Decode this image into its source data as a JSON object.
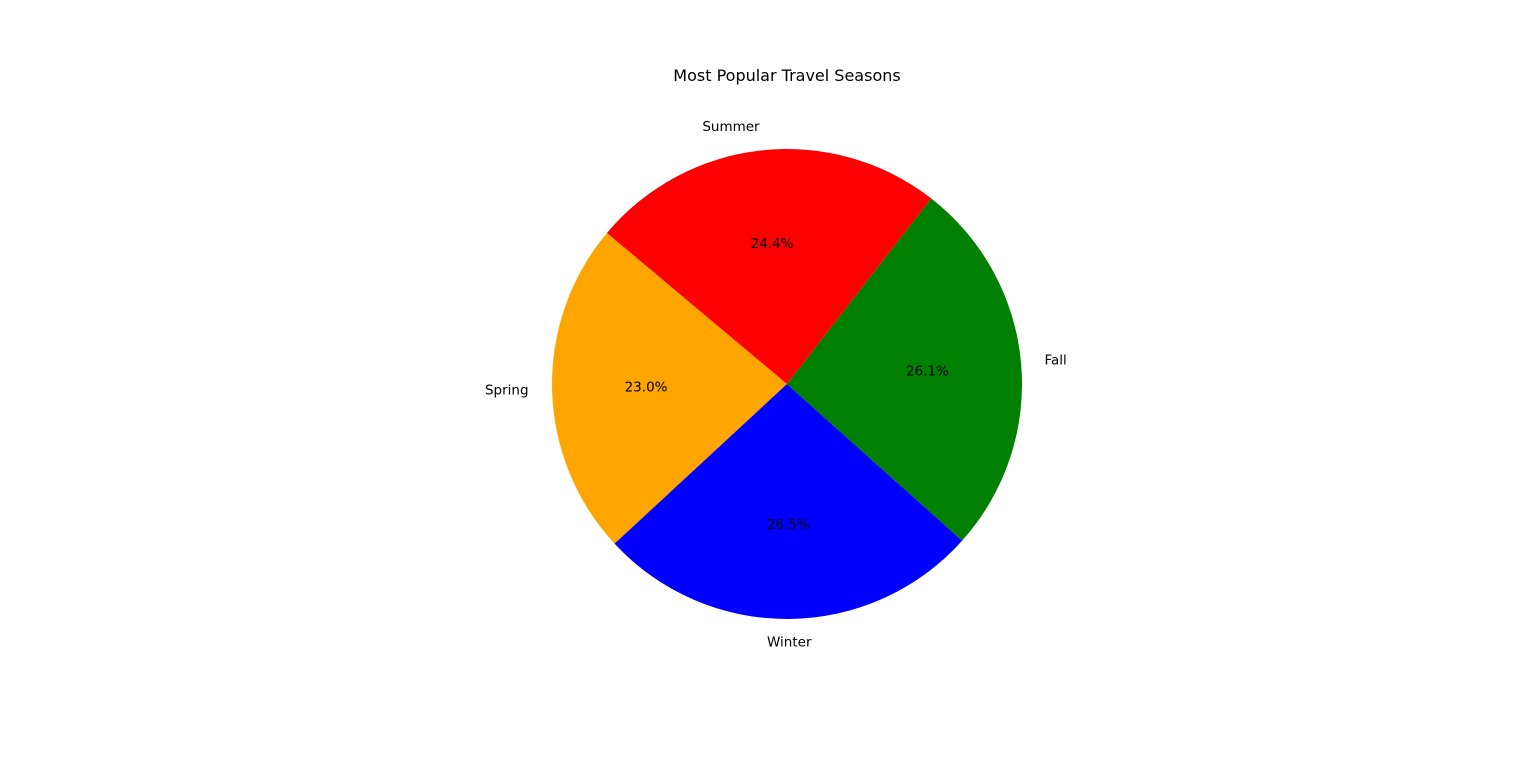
{
  "chart_data": {
    "type": "pie",
    "title": "Most Popular Travel Seasons",
    "start_angle_deg": 140,
    "direction": "counterclockwise",
    "slices": [
      {
        "label": "Spring",
        "value": 23.0,
        "pct_label": "23.0%",
        "color": "#FFA500"
      },
      {
        "label": "Winter",
        "value": 26.5,
        "pct_label": "26.5%",
        "color": "#0000FF"
      },
      {
        "label": "Fall",
        "value": 26.1,
        "pct_label": "26.1%",
        "color": "#008000"
      },
      {
        "label": "Summer",
        "value": 24.4,
        "pct_label": "24.4%",
        "color": "#FF0000"
      }
    ]
  }
}
